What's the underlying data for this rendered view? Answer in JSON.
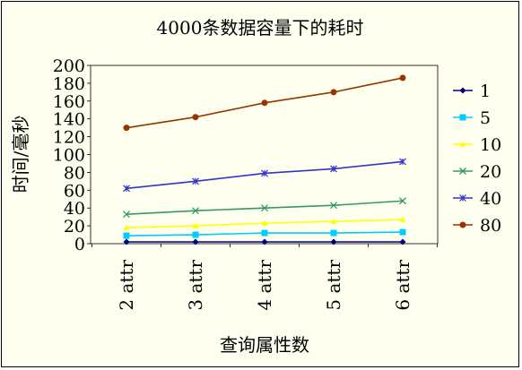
{
  "chart_data": {
    "type": "line",
    "title": "4000条数据容量下的耗时",
    "xlabel": "查询属性数",
    "ylabel": "时间/毫秒",
    "categories": [
      "2 attr",
      "3 attr",
      "4 attr",
      "5 attr",
      "6 attr"
    ],
    "ylim": [
      0,
      200
    ],
    "yticks": [
      "0",
      "20",
      "40",
      "60",
      "80",
      "100",
      "120",
      "140",
      "160",
      "180",
      "200"
    ],
    "grid": false,
    "legend_position": "right",
    "series": [
      {
        "name": "1",
        "color": "#000080",
        "marker": "diamond",
        "values": [
          2,
          2,
          2,
          2,
          2
        ]
      },
      {
        "name": "5",
        "color": "#00ccff",
        "marker": "square",
        "values": [
          9,
          10,
          12,
          12,
          13
        ]
      },
      {
        "name": "10",
        "color": "#ffff00",
        "marker": "triangle",
        "values": [
          18,
          20,
          23,
          25,
          27
        ]
      },
      {
        "name": "20",
        "color": "#339966",
        "marker": "x",
        "values": [
          33,
          37,
          40,
          43,
          48
        ]
      },
      {
        "name": "40",
        "color": "#3333cc",
        "marker": "star",
        "values": [
          62,
          70,
          79,
          84,
          92
        ]
      },
      {
        "name": "80",
        "color": "#993300",
        "marker": "circle",
        "values": [
          130,
          142,
          158,
          170,
          186
        ]
      }
    ]
  }
}
